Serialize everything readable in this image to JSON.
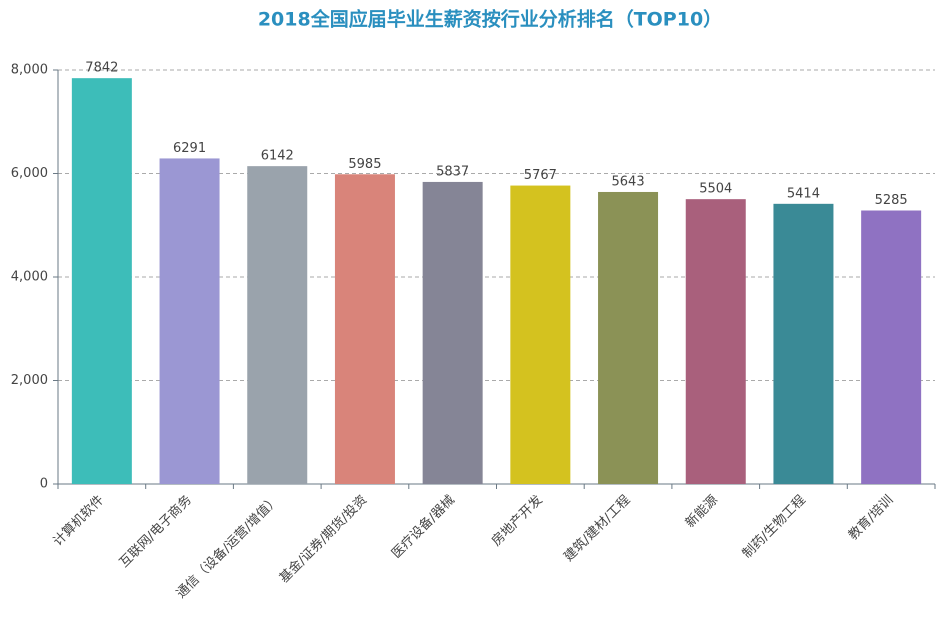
{
  "chart_data": {
    "type": "bar",
    "title": "2018全国应届毕业生薪资按行业分析排名（TOP10）",
    "categories": [
      "计算机软件",
      "互联网/电子商务",
      "通信（设备/运营/增值）",
      "基金/证券/期货/投资",
      "医疗设备/器械",
      "房地产开发",
      "建筑/建材/工程",
      "新能源",
      "制药/生物工程",
      "教育/培训"
    ],
    "values": [
      7842,
      6291,
      6142,
      5985,
      5837,
      5767,
      5643,
      5504,
      5414,
      5285
    ],
    "colors": [
      "#3dbdb9",
      "#9b97d3",
      "#9aa3ac",
      "#d9847a",
      "#858596",
      "#d4c21f",
      "#8b9256",
      "#a9607c",
      "#3a8a96",
      "#8f72c2"
    ],
    "ylim": [
      0,
      8000
    ],
    "yticks": [
      0,
      {
        "value": 2000,
        "label": "2,000"
      },
      {
        "value": 4000,
        "label": "4,000"
      },
      {
        "value": 6000,
        "label": "6,000"
      },
      {
        "value": 8000,
        "label": "8,000"
      }
    ],
    "grid": true
  }
}
